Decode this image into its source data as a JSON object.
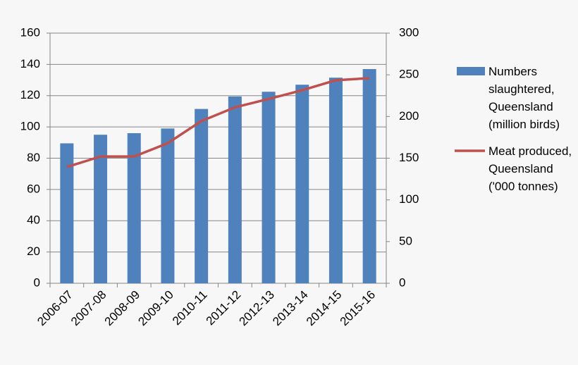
{
  "chart_data": {
    "type": "bar",
    "categories": [
      "2006-07",
      "2007-08",
      "2008-09",
      "2009-10",
      "2010-11",
      "2011-12",
      "2012-13",
      "2013-14",
      "2014-15",
      "2015-16"
    ],
    "series": [
      {
        "name": "Numbers slaughtered, Queensland (million birds)",
        "type": "bar",
        "color": "#4f81bd",
        "values": [
          89.5,
          95,
          96,
          99,
          111.5,
          119.5,
          122.5,
          127,
          131.5,
          137
        ]
      },
      {
        "name": "Meat produced, Queensland ('000 tonnes)",
        "type": "line",
        "axis": "y2",
        "color": "#c0504d",
        "values": [
          139.5,
          152,
          152,
          168,
          194.5,
          211,
          221,
          231.5,
          243.5,
          246
        ]
      }
    ],
    "ylim": [
      0,
      160
    ],
    "yticks": [
      0,
      20,
      40,
      60,
      80,
      100,
      120,
      140,
      160
    ],
    "y2lim": [
      0,
      300
    ],
    "y2ticks": [
      0,
      50,
      100,
      150,
      200,
      250,
      300
    ],
    "grid": true,
    "legend": "right"
  }
}
